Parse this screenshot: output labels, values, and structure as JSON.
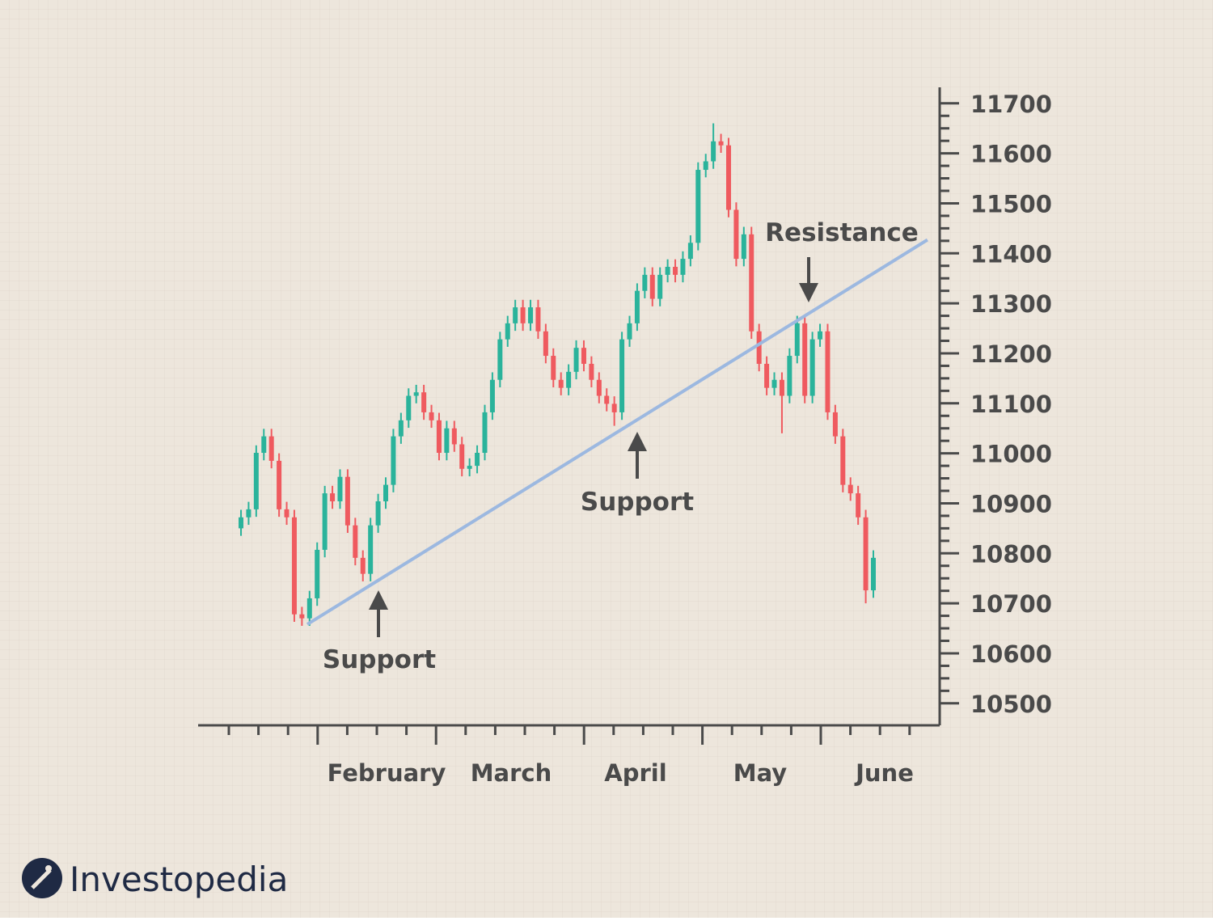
{
  "chart_data": {
    "type": "candlestick",
    "up_color": "#2ab39b",
    "down_color": "#ef5a5f",
    "open": [
      10850,
      10872,
      10888,
      11001,
      11034,
      10985,
      10888,
      10872,
      10678,
      10670,
      10710,
      10807,
      10920,
      10904,
      10953,
      10856,
      10791,
      10759,
      10856,
      10904,
      10937,
      11034,
      11066,
      11115,
      11122,
      11082,
      11066,
      11001,
      11050,
      11018,
      10969,
      10975,
      11001,
      11082,
      11147,
      11228,
      11260,
      11292,
      11260,
      11292,
      11244,
      11195,
      11147,
      11131,
      11163,
      11211,
      11179,
      11147,
      11115,
      11099,
      11082,
      11228,
      11260,
      11325,
      11357,
      11309,
      11357,
      11373,
      11357,
      11389,
      11421,
      11567,
      11584,
      11624,
      11616,
      11487,
      11389,
      11438,
      11244,
      11179,
      11131,
      11147,
      11115,
      11195,
      11260,
      11115,
      11228,
      11244,
      11082,
      11034,
      10937,
      10920,
      10872,
      10726
    ],
    "high": [
      10887,
      10903,
      11016,
      11049,
      11049,
      11000,
      10903,
      10887,
      10693,
      10725,
      10822,
      10935,
      10935,
      10968,
      10968,
      10871,
      10806,
      10871,
      10919,
      10952,
      11049,
      11081,
      11130,
      11137,
      11137,
      11097,
      11081,
      11065,
      11065,
      11033,
      10990,
      11016,
      11097,
      11162,
      11243,
      11275,
      11307,
      11307,
      11307,
      11307,
      11259,
      11210,
      11162,
      11178,
      11226,
      11226,
      11194,
      11162,
      11130,
      11114,
      11243,
      11275,
      11340,
      11372,
      11372,
      11372,
      11388,
      11388,
      11404,
      11436,
      11582,
      11599,
      11660,
      11639,
      11631,
      11502,
      11453,
      11453,
      11259,
      11194,
      11162,
      11162,
      11210,
      11275,
      11275,
      11243,
      11259,
      11259,
      11097,
      11049,
      10952,
      10935,
      10887,
      10806
    ],
    "low": [
      10835,
      10857,
      10873,
      10986,
      10970,
      10873,
      10857,
      10663,
      10655,
      10655,
      10695,
      10792,
      10889,
      10889,
      10841,
      10776,
      10744,
      10744,
      10841,
      10889,
      10922,
      11019,
      11051,
      11100,
      11067,
      11051,
      10986,
      10986,
      11003,
      10954,
      10954,
      10960,
      10986,
      11067,
      11132,
      11213,
      11245,
      11245,
      11245,
      11229,
      11180,
      11132,
      11116,
      11116,
      11148,
      11164,
      11132,
      11100,
      11084,
      11055,
      11067,
      11213,
      11245,
      11310,
      11294,
      11294,
      11342,
      11342,
      11342,
      11374,
      11406,
      11552,
      11569,
      11601,
      11472,
      11374,
      11374,
      11229,
      11164,
      11116,
      11116,
      11040,
      11100,
      11180,
      11100,
      11100,
      11213,
      11067,
      11019,
      10922,
      10905,
      10857,
      10700,
      10711
    ],
    "close": [
      10872,
      10888,
      11001,
      11034,
      10985,
      10888,
      10872,
      10678,
      10670,
      10710,
      10807,
      10920,
      10904,
      10953,
      10856,
      10791,
      10759,
      10856,
      10904,
      10937,
      11034,
      11066,
      11115,
      11122,
      11082,
      11066,
      11001,
      11050,
      11018,
      10969,
      10975,
      11001,
      11082,
      11147,
      11228,
      11260,
      11292,
      11260,
      11292,
      11244,
      11195,
      11147,
      11131,
      11163,
      11211,
      11179,
      11147,
      11115,
      11099,
      11082,
      11228,
      11260,
      11325,
      11357,
      11309,
      11357,
      11373,
      11357,
      11389,
      11421,
      11567,
      11584,
      11624,
      11616,
      11487,
      11389,
      11438,
      11244,
      11179,
      11131,
      11147,
      11115,
      11195,
      11260,
      11115,
      11228,
      11244,
      11082,
      11034,
      10937,
      10920,
      10872,
      10726,
      10791
    ],
    "months": [
      "February",
      "March",
      "April",
      "May",
      "June"
    ],
    "ylim": [
      10456,
      11732
    ],
    "yticks": [
      10500,
      10600,
      10700,
      10800,
      10900,
      11000,
      11100,
      11200,
      11300,
      11400,
      11500,
      11600,
      11700
    ],
    "trendline": {
      "x": [
        8.7,
        90.1
      ],
      "values": [
        10658,
        11427
      ],
      "color": "#9cb8e0"
    },
    "annotations": [
      "Support",
      "Support",
      "Resistance"
    ]
  },
  "brand": "Investopedia"
}
